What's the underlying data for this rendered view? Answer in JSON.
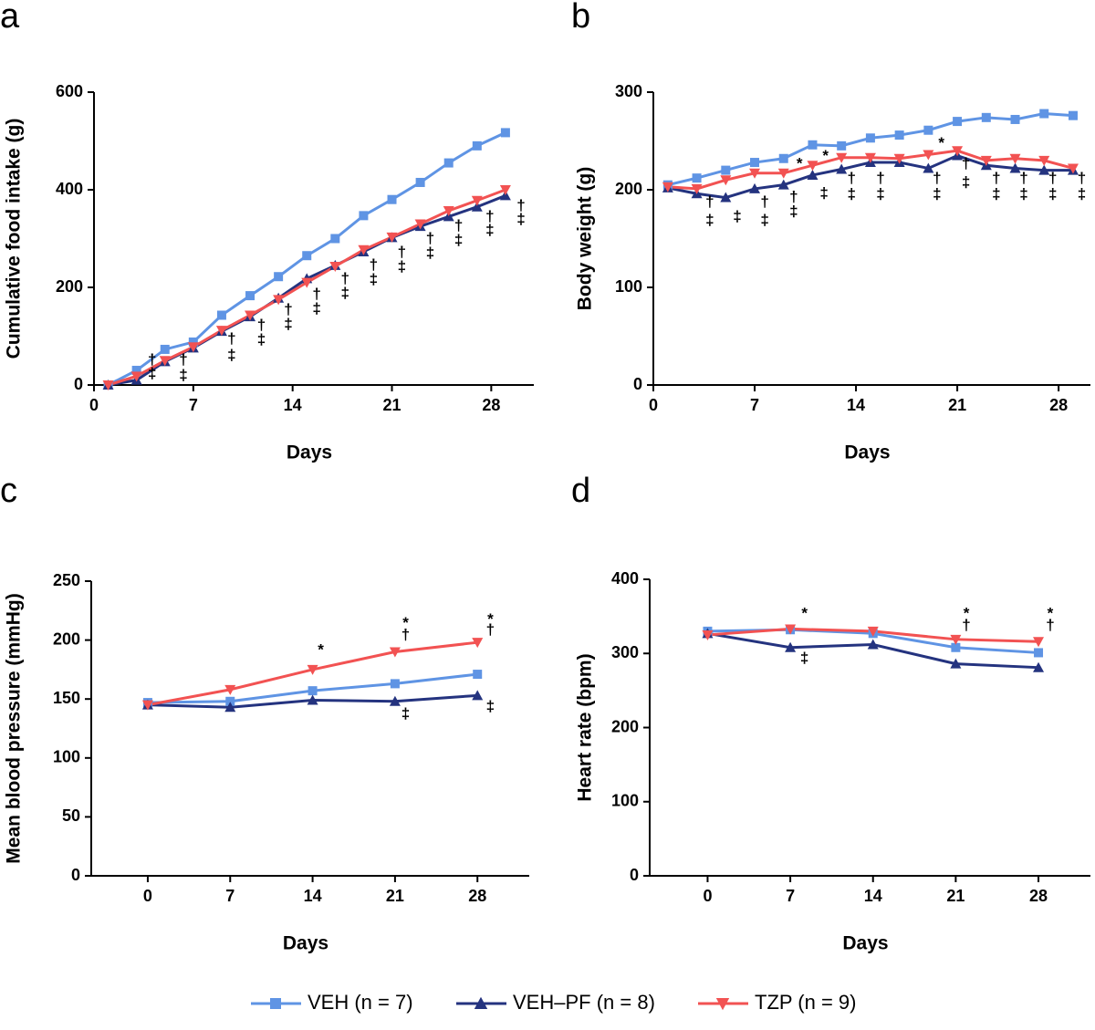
{
  "chart_data": [
    {
      "type": "line",
      "panel": "a",
      "ylabel": "Cumulative food intake (g)",
      "xlabel": "Days",
      "x": [
        1,
        3,
        5,
        7,
        9,
        11,
        13,
        15,
        17,
        19,
        21,
        23,
        25,
        27,
        29
      ],
      "xlim": [
        0,
        31
      ],
      "ylim": [
        0,
        600
      ],
      "xticks": [
        0,
        7,
        14,
        21,
        28
      ],
      "yticks": [
        0,
        200,
        400,
        600
      ],
      "series": [
        {
          "values": [
            0,
            30,
            73,
            88,
            143,
            183,
            222,
            265,
            300,
            347,
            380,
            415,
            455,
            490,
            517
          ]
        },
        {
          "values": [
            0,
            10,
            48,
            76,
            110,
            140,
            178,
            218,
            245,
            273,
            302,
            325,
            345,
            365,
            388
          ]
        },
        {
          "values": [
            0,
            18,
            50,
            78,
            112,
            143,
            175,
            210,
            243,
            277,
            303,
            330,
            357,
            378,
            400
          ]
        }
      ],
      "annotations": [
        {
          "text": "†",
          "x": 4.1,
          "y": 50
        },
        {
          "text": "‡",
          "x": 4.1,
          "y": 22
        },
        {
          "text": "†",
          "x": 6.3,
          "y": 50
        },
        {
          "text": "‡",
          "x": 6.3,
          "y": 19
        },
        {
          "text": "†",
          "x": 9.7,
          "y": 93
        },
        {
          "text": "‡",
          "x": 9.7,
          "y": 60
        },
        {
          "text": "†",
          "x": 11.8,
          "y": 121
        },
        {
          "text": "‡",
          "x": 11.8,
          "y": 92
        },
        {
          "text": "†",
          "x": 13.7,
          "y": 153
        },
        {
          "text": "‡",
          "x": 13.7,
          "y": 123
        },
        {
          "text": "†",
          "x": 15.7,
          "y": 185
        },
        {
          "text": "‡",
          "x": 15.7,
          "y": 155
        },
        {
          "text": "†",
          "x": 17.7,
          "y": 217
        },
        {
          "text": "‡",
          "x": 17.7,
          "y": 187
        },
        {
          "text": "†",
          "x": 19.7,
          "y": 245
        },
        {
          "text": "‡",
          "x": 19.7,
          "y": 215
        },
        {
          "text": "†",
          "x": 21.7,
          "y": 271
        },
        {
          "text": "‡",
          "x": 21.7,
          "y": 241
        },
        {
          "text": "†",
          "x": 23.7,
          "y": 299
        },
        {
          "text": "‡",
          "x": 23.7,
          "y": 269
        },
        {
          "text": "†",
          "x": 25.7,
          "y": 325
        },
        {
          "text": "‡",
          "x": 25.7,
          "y": 295
        },
        {
          "text": "†",
          "x": 27.9,
          "y": 344
        },
        {
          "text": "‡",
          "x": 27.9,
          "y": 316
        },
        {
          "text": "†",
          "x": 30.1,
          "y": 366
        },
        {
          "text": "‡",
          "x": 30.1,
          "y": 338
        }
      ]
    },
    {
      "type": "line",
      "panel": "b",
      "ylabel": "Body weight (g)",
      "xlabel": "Days",
      "x": [
        1,
        3,
        5,
        7,
        9,
        11,
        13,
        15,
        17,
        19,
        21,
        23,
        25,
        27,
        29
      ],
      "xlim": [
        0,
        30.2
      ],
      "ylim": [
        0,
        300
      ],
      "xticks": [
        0,
        7,
        14,
        21,
        28
      ],
      "yticks": [
        0,
        100,
        200,
        300
      ],
      "series": [
        {
          "values": [
            205,
            212,
            220,
            228,
            232,
            246,
            245,
            253,
            256,
            261,
            270,
            274,
            272,
            278,
            276
          ]
        },
        {
          "values": [
            202,
            196,
            192,
            201,
            205,
            215,
            221,
            228,
            228,
            222,
            235,
            225,
            222,
            220,
            220
          ]
        },
        {
          "values": [
            203,
            201,
            210,
            217,
            217,
            225,
            233,
            233,
            232,
            236,
            240,
            230,
            232,
            230,
            222
          ]
        }
      ],
      "annotations": [
        {
          "text": "*",
          "x": 10.1,
          "y": 226
        },
        {
          "text": "*",
          "x": 11.9,
          "y": 234
        },
        {
          "text": "*",
          "x": 19.9,
          "y": 247
        },
        {
          "text": "†",
          "x": 3.9,
          "y": 187
        },
        {
          "text": "‡",
          "x": 3.9,
          "y": 168
        },
        {
          "text": "‡",
          "x": 5.8,
          "y": 172
        },
        {
          "text": "†",
          "x": 7.7,
          "y": 187
        },
        {
          "text": "‡",
          "x": 7.7,
          "y": 168
        },
        {
          "text": "†",
          "x": 9.7,
          "y": 192
        },
        {
          "text": "‡",
          "x": 9.7,
          "y": 177
        },
        {
          "text": "‡",
          "x": 11.8,
          "y": 196
        },
        {
          "text": "†",
          "x": 13.7,
          "y": 211
        },
        {
          "text": "‡",
          "x": 13.7,
          "y": 195
        },
        {
          "text": "†",
          "x": 15.7,
          "y": 211
        },
        {
          "text": "‡",
          "x": 15.7,
          "y": 195
        },
        {
          "text": "†",
          "x": 19.6,
          "y": 211
        },
        {
          "text": "‡",
          "x": 19.6,
          "y": 195
        },
        {
          "text": "†",
          "x": 21.6,
          "y": 226
        },
        {
          "text": "‡",
          "x": 21.6,
          "y": 207
        },
        {
          "text": "†",
          "x": 23.7,
          "y": 211
        },
        {
          "text": "‡",
          "x": 23.7,
          "y": 195
        },
        {
          "text": "†",
          "x": 25.6,
          "y": 211
        },
        {
          "text": "‡",
          "x": 25.6,
          "y": 195
        },
        {
          "text": "†",
          "x": 27.6,
          "y": 211
        },
        {
          "text": "‡",
          "x": 27.6,
          "y": 195
        },
        {
          "text": "†",
          "x": 29.6,
          "y": 211
        },
        {
          "text": "‡",
          "x": 29.6,
          "y": 195
        }
      ]
    },
    {
      "type": "line",
      "panel": "c",
      "ylabel": "Mean blood pressure (mmHg)",
      "xlabel": "Days",
      "x": [
        0,
        7,
        14,
        21,
        28
      ],
      "xlim": [
        -4.8,
        32.4
      ],
      "ylim": [
        0,
        250
      ],
      "xticks": [
        0,
        7,
        14,
        21,
        28
      ],
      "yticks": [
        0,
        50,
        100,
        150,
        200,
        250
      ],
      "series": [
        {
          "values": [
            147,
            148,
            157,
            163,
            171
          ]
        },
        {
          "values": [
            145,
            143,
            149,
            148,
            153
          ]
        },
        {
          "values": [
            145,
            158,
            175,
            190,
            198
          ]
        }
      ],
      "annotations": [
        {
          "text": "*",
          "x": 14.7,
          "y": 191
        },
        {
          "text": "*",
          "x": 21.9,
          "y": 214
        },
        {
          "text": "†",
          "x": 21.9,
          "y": 204
        },
        {
          "text": "‡",
          "x": 21.9,
          "y": 137
        },
        {
          "text": "*",
          "x": 29.1,
          "y": 217
        },
        {
          "text": "†",
          "x": 29.1,
          "y": 208
        },
        {
          "text": "‡",
          "x": 29.1,
          "y": 143
        }
      ]
    },
    {
      "type": "line",
      "panel": "d",
      "ylabel": "Heart rate (bpm)",
      "xlabel": "Days",
      "x": [
        0,
        7,
        14,
        21,
        28
      ],
      "xlim": [
        -4.9,
        32.4
      ],
      "ylim": [
        0,
        400
      ],
      "xticks": [
        0,
        7,
        14,
        21,
        28
      ],
      "yticks": [
        0,
        100,
        200,
        300,
        400
      ],
      "series": [
        {
          "values": [
            330,
            332,
            327,
            308,
            301
          ]
        },
        {
          "values": [
            327,
            308,
            312,
            286,
            281
          ]
        },
        {
          "values": [
            325,
            333,
            330,
            319,
            316
          ]
        }
      ],
      "annotations": [
        {
          "text": "*",
          "x": 8.2,
          "y": 353
        },
        {
          "text": "‡",
          "x": 8.2,
          "y": 293
        },
        {
          "text": "*",
          "x": 21.9,
          "y": 353
        },
        {
          "text": "†",
          "x": 21.9,
          "y": 337
        },
        {
          "text": "*",
          "x": 29,
          "y": 353
        },
        {
          "text": "†",
          "x": 29,
          "y": 337
        }
      ]
    }
  ],
  "legend": {
    "series": [
      {
        "name": "VEH (n = 7)",
        "color": "#5f94e4",
        "marker": "square"
      },
      {
        "name": "VEH–PF (n = 8)",
        "color": "#24337f",
        "marker": "triangle-up"
      },
      {
        "name": "TZP (n = 9)",
        "color": "#f25252",
        "marker": "triangle-down"
      }
    ]
  }
}
